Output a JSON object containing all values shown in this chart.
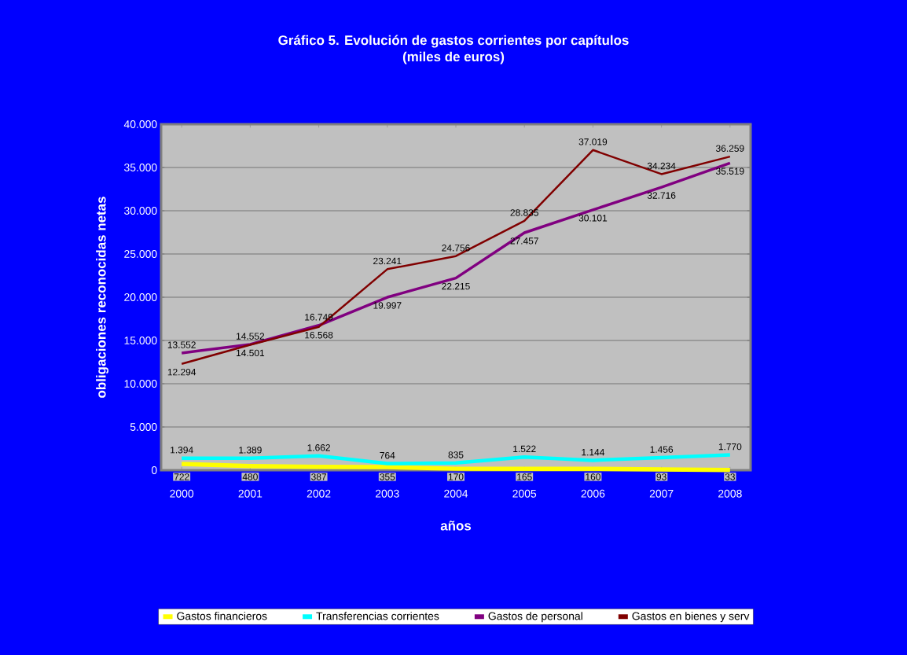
{
  "chart_data": {
    "type": "line",
    "title": "Gráfico 5. Evolución de gastos corrientes por capítulos",
    "subtitle": "(miles de euros)",
    "xlabel": "años",
    "ylabel": "obligaciones reconocidas netas",
    "categories": [
      "2000",
      "2001",
      "2002",
      "2003",
      "2004",
      "2005",
      "2006",
      "2007",
      "2008"
    ],
    "series": [
      {
        "name": "Gastos financieros",
        "color": "#ffff00",
        "values": [
          722,
          480,
          387,
          355,
          170,
          165,
          160,
          93,
          33
        ],
        "value_labels": [
          "722",
          "480",
          "387",
          "355",
          "170",
          "165",
          "160",
          "93",
          "33"
        ]
      },
      {
        "name": "Transferencias corrientes",
        "color": "#00ffff",
        "values": [
          1394,
          1389,
          1662,
          764,
          835,
          1522,
          1144,
          1456,
          1770
        ],
        "value_labels": [
          "1.394",
          "1.389",
          "1.662",
          "764",
          "835",
          "1.522",
          "1.144",
          "1.456",
          "1.770"
        ]
      },
      {
        "name": "Gastos de personal",
        "color": "#800080",
        "values": [
          13552,
          14552,
          16749,
          19997,
          22215,
          27457,
          30101,
          32716,
          35519
        ],
        "value_labels": [
          "13.552",
          "14.552",
          "16.749",
          "19.997",
          "22.215",
          "27.457",
          "30.101",
          "32.716",
          "35.519"
        ]
      },
      {
        "name": "Gastos en bienes y serv",
        "color": "#800000",
        "values": [
          12294,
          14501,
          16568,
          23241,
          24756,
          28835,
          37019,
          34234,
          36259
        ],
        "value_labels": [
          "12.294",
          "14.501",
          "16.568",
          "23.241",
          "24.756",
          "28.835",
          "37.019",
          "34.234",
          "36.259"
        ]
      }
    ],
    "ylim": [
      0,
      40000
    ],
    "yticks": [
      0,
      {
        "value": 5000,
        "label": "5.000"
      },
      {
        "value": 10000,
        "label": "10.000"
      },
      {
        "value": 15000,
        "label": "15.000"
      },
      {
        "value": 20000,
        "label": "20.000"
      },
      {
        "value": 25000,
        "label": "25.000"
      },
      {
        "value": 30000,
        "label": "30.000"
      },
      {
        "value": 35000,
        "label": "35.000"
      },
      {
        "value": 40000,
        "label": "40.000"
      }
    ],
    "grid": "y",
    "legend": "bottom",
    "line_style": "solid"
  }
}
